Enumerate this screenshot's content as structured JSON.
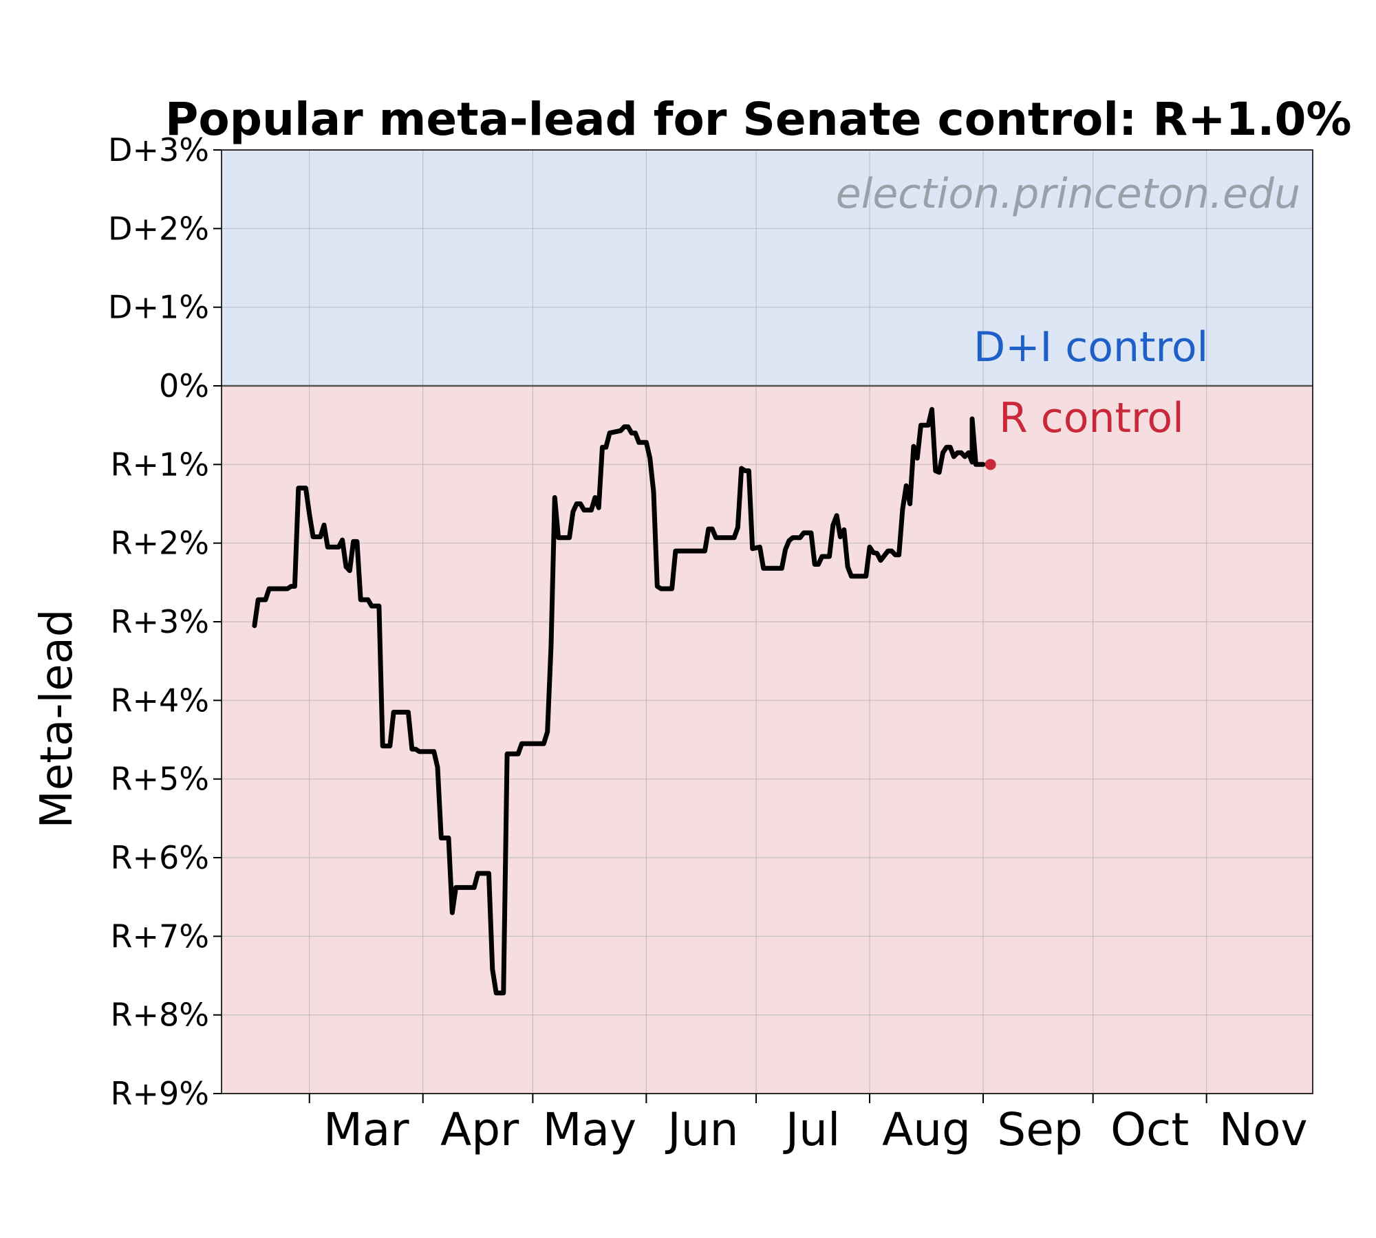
{
  "chart_data": {
    "type": "line",
    "title": "Popular meta-lead for Senate control: R+1.0%",
    "ylabel": "Meta-lead",
    "watermark": "election.princeton.edu",
    "ylim": [
      -9,
      3
    ],
    "xlim": [
      "2024-02-06",
      "2024-11-30"
    ],
    "grid": true,
    "y_ticks": [
      {
        "value": 3,
        "label": "D+3%"
      },
      {
        "value": 2,
        "label": "D+2%"
      },
      {
        "value": 1,
        "label": "D+1%"
      },
      {
        "value": 0,
        "label": "0%"
      },
      {
        "value": -1,
        "label": "R+1%"
      },
      {
        "value": -2,
        "label": "R+2%"
      },
      {
        "value": -3,
        "label": "R+3%"
      },
      {
        "value": -4,
        "label": "R+4%"
      },
      {
        "value": -5,
        "label": "R+5%"
      },
      {
        "value": -6,
        "label": "R+6%"
      },
      {
        "value": -7,
        "label": "R+7%"
      },
      {
        "value": -8,
        "label": "R+8%"
      },
      {
        "value": -9,
        "label": "R+9%"
      }
    ],
    "x_ticks": [
      {
        "date": "2024-03-01",
        "label": "Mar"
      },
      {
        "date": "2024-04-01",
        "label": "Apr"
      },
      {
        "date": "2024-05-01",
        "label": "May"
      },
      {
        "date": "2024-06-01",
        "label": "Jun"
      },
      {
        "date": "2024-07-01",
        "label": "Jul"
      },
      {
        "date": "2024-08-01",
        "label": "Aug"
      },
      {
        "date": "2024-09-01",
        "label": "Sep"
      },
      {
        "date": "2024-10-01",
        "label": "Oct"
      },
      {
        "date": "2024-11-01",
        "label": "Nov"
      }
    ],
    "regions": [
      {
        "label": "D+I control",
        "range": [
          0,
          3
        ],
        "color": "#dce6f5",
        "label_color": "#1f5fc8"
      },
      {
        "label": "R control",
        "range": [
          -9,
          0
        ],
        "color": "#f5dde0",
        "label_color": "#c8283a"
      }
    ],
    "series": [
      {
        "color": "#000000",
        "points": [
          [
            "2024-02-15",
            -3.05
          ],
          [
            "2024-02-16",
            -2.72
          ],
          [
            "2024-02-18",
            -2.72
          ],
          [
            "2024-02-19",
            -2.58
          ],
          [
            "2024-02-24",
            -2.58
          ],
          [
            "2024-02-25",
            -2.55
          ],
          [
            "2024-02-26",
            -2.55
          ],
          [
            "2024-02-27",
            -1.3
          ],
          [
            "2024-02-29",
            -1.3
          ],
          [
            "2024-03-01",
            -1.63
          ],
          [
            "2024-03-02",
            -1.92
          ],
          [
            "2024-03-04",
            -1.92
          ],
          [
            "2024-03-05",
            -1.77
          ],
          [
            "2024-03-06",
            -2.05
          ],
          [
            "2024-03-09",
            -2.05
          ],
          [
            "2024-03-10",
            -1.96
          ],
          [
            "2024-03-11",
            -2.3
          ],
          [
            "2024-03-12",
            -2.35
          ],
          [
            "2024-03-13",
            -1.98
          ],
          [
            "2024-03-14",
            -1.98
          ],
          [
            "2024-03-15",
            -2.72
          ],
          [
            "2024-03-17",
            -2.72
          ],
          [
            "2024-03-18",
            -2.8
          ],
          [
            "2024-03-20",
            -2.8
          ],
          [
            "2024-03-21",
            -4.58
          ],
          [
            "2024-03-23",
            -4.58
          ],
          [
            "2024-03-24",
            -4.15
          ],
          [
            "2024-03-28",
            -4.15
          ],
          [
            "2024-03-29",
            -4.62
          ],
          [
            "2024-03-30",
            -4.62
          ],
          [
            "2024-03-31",
            -4.65
          ],
          [
            "2024-04-04",
            -4.65
          ],
          [
            "2024-04-05",
            -4.85
          ],
          [
            "2024-04-06",
            -5.75
          ],
          [
            "2024-04-08",
            -5.75
          ],
          [
            "2024-04-09",
            -6.7
          ],
          [
            "2024-04-10",
            -6.38
          ],
          [
            "2024-04-15",
            -6.38
          ],
          [
            "2024-04-16",
            -6.2
          ],
          [
            "2024-04-19",
            -6.2
          ],
          [
            "2024-04-20",
            -7.42
          ],
          [
            "2024-04-21",
            -7.72
          ],
          [
            "2024-04-23",
            -7.72
          ],
          [
            "2024-04-24",
            -4.68
          ],
          [
            "2024-04-27",
            -4.68
          ],
          [
            "2024-04-28",
            -4.55
          ],
          [
            "2024-05-04",
            -4.55
          ],
          [
            "2024-05-05",
            -4.4
          ],
          [
            "2024-05-06",
            -3.3
          ],
          [
            "2024-05-07",
            -1.42
          ],
          [
            "2024-05-08",
            -1.93
          ],
          [
            "2024-05-11",
            -1.93
          ],
          [
            "2024-05-12",
            -1.6
          ],
          [
            "2024-05-13",
            -1.5
          ],
          [
            "2024-05-14",
            -1.5
          ],
          [
            "2024-05-15",
            -1.58
          ],
          [
            "2024-05-17",
            -1.58
          ],
          [
            "2024-05-18",
            -1.42
          ],
          [
            "2024-05-19",
            -1.55
          ],
          [
            "2024-05-20",
            -0.78
          ],
          [
            "2024-05-21",
            -0.78
          ],
          [
            "2024-05-22",
            -0.6
          ],
          [
            "2024-05-24",
            -0.58
          ],
          [
            "2024-05-25",
            -0.57
          ],
          [
            "2024-05-26",
            -0.52
          ],
          [
            "2024-05-27",
            -0.52
          ],
          [
            "2024-05-28",
            -0.6
          ],
          [
            "2024-05-29",
            -0.6
          ],
          [
            "2024-05-30",
            -0.72
          ],
          [
            "2024-06-01",
            -0.72
          ],
          [
            "2024-06-02",
            -0.92
          ],
          [
            "2024-06-03",
            -1.35
          ],
          [
            "2024-06-04",
            -2.55
          ],
          [
            "2024-06-05",
            -2.58
          ],
          [
            "2024-06-08",
            -2.58
          ],
          [
            "2024-06-09",
            -2.1
          ],
          [
            "2024-06-17",
            -2.1
          ],
          [
            "2024-06-18",
            -1.82
          ],
          [
            "2024-06-19",
            -1.82
          ],
          [
            "2024-06-20",
            -1.93
          ],
          [
            "2024-06-25",
            -1.93
          ],
          [
            "2024-06-26",
            -1.8
          ],
          [
            "2024-06-27",
            -1.05
          ],
          [
            "2024-06-28",
            -1.08
          ],
          [
            "2024-06-29",
            -1.08
          ],
          [
            "2024-06-30",
            -2.07
          ],
          [
            "2024-07-02",
            -2.05
          ],
          [
            "2024-07-03",
            -2.32
          ],
          [
            "2024-07-08",
            -2.32
          ],
          [
            "2024-07-09",
            -2.08
          ],
          [
            "2024-07-10",
            -1.97
          ],
          [
            "2024-07-11",
            -1.93
          ],
          [
            "2024-07-13",
            -1.93
          ],
          [
            "2024-07-14",
            -1.87
          ],
          [
            "2024-07-16",
            -1.87
          ],
          [
            "2024-07-17",
            -2.27
          ],
          [
            "2024-07-18",
            -2.27
          ],
          [
            "2024-07-19",
            -2.17
          ],
          [
            "2024-07-21",
            -2.17
          ],
          [
            "2024-07-22",
            -1.77
          ],
          [
            "2024-07-23",
            -1.65
          ],
          [
            "2024-07-24",
            -1.92
          ],
          [
            "2024-07-25",
            -1.83
          ],
          [
            "2024-07-26",
            -2.3
          ],
          [
            "2024-07-27",
            -2.42
          ],
          [
            "2024-07-31",
            -2.42
          ],
          [
            "2024-08-01",
            -2.05
          ],
          [
            "2024-08-02",
            -2.12
          ],
          [
            "2024-08-03",
            -2.13
          ],
          [
            "2024-08-04",
            -2.22
          ],
          [
            "2024-08-06",
            -2.1
          ],
          [
            "2024-08-07",
            -2.1
          ],
          [
            "2024-08-08",
            -2.15
          ],
          [
            "2024-08-09",
            -2.15
          ],
          [
            "2024-08-10",
            -1.57
          ],
          [
            "2024-08-11",
            -1.27
          ],
          [
            "2024-08-12",
            -1.5
          ],
          [
            "2024-08-13",
            -0.77
          ],
          [
            "2024-08-14",
            -0.92
          ],
          [
            "2024-08-15",
            -0.5
          ],
          [
            "2024-08-17",
            -0.5
          ],
          [
            "2024-08-18",
            -0.3
          ],
          [
            "2024-08-19",
            -1.08
          ],
          [
            "2024-08-20",
            -1.1
          ],
          [
            "2024-08-21",
            -0.85
          ],
          [
            "2024-08-22",
            -0.78
          ],
          [
            "2024-08-23",
            -0.78
          ],
          [
            "2024-08-24",
            -0.9
          ],
          [
            "2024-08-25",
            -0.85
          ],
          [
            "2024-08-26",
            -0.85
          ],
          [
            "2024-08-27",
            -0.9
          ],
          [
            "2024-08-28",
            -0.85
          ],
          [
            "2024-08-29",
            -0.97
          ],
          [
            "2024-08-29",
            -0.42
          ],
          [
            "2024-08-30",
            -1.0
          ],
          [
            "2024-09-01",
            -1.0
          ]
        ]
      }
    ],
    "current_marker": {
      "date": "2024-09-03",
      "value": -1.0,
      "color": "#c8283a"
    }
  }
}
